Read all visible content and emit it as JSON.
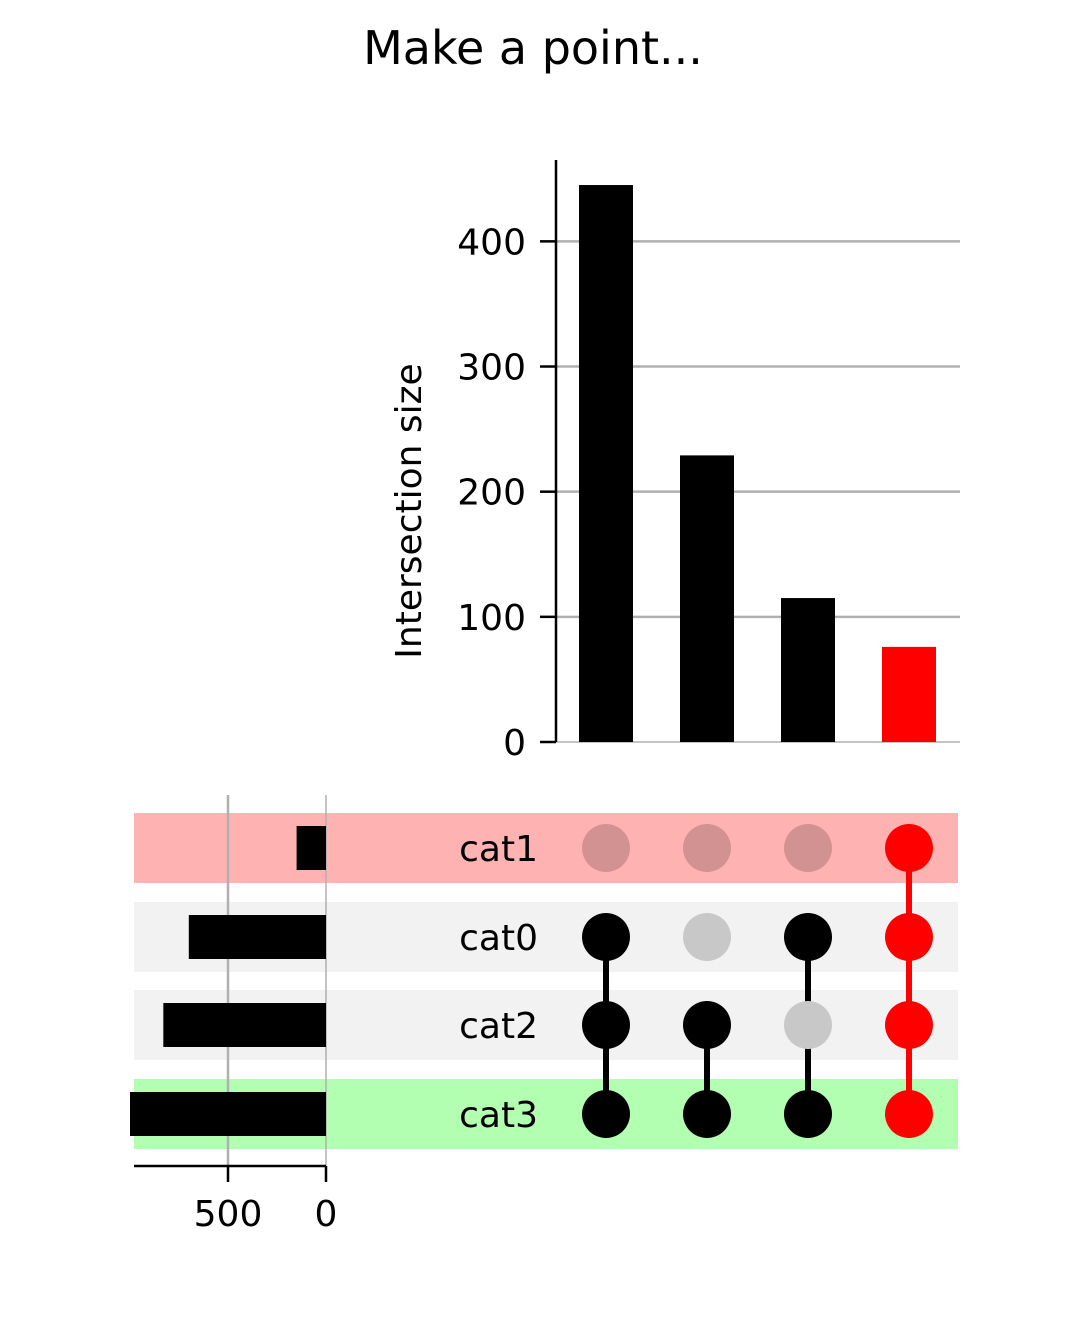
{
  "chart_data": {
    "type": "upset",
    "title": "Make a point...",
    "intersections": {
      "ylabel": "Intersection size",
      "yticks": [
        0,
        100,
        200,
        300,
        400
      ],
      "ylim": [
        0,
        465
      ],
      "grid": true,
      "values": [
        445,
        229,
        115,
        76
      ],
      "bar_colors": [
        "#000000",
        "#000000",
        "#000000",
        "#ff0000"
      ],
      "members": [
        [
          "cat0",
          "cat2",
          "cat3"
        ],
        [
          "cat2",
          "cat3"
        ],
        [
          "cat0",
          "cat3"
        ],
        [
          "cat1",
          "cat0",
          "cat2",
          "cat3"
        ]
      ],
      "dot_colors": [
        "#000000",
        "#000000",
        "#000000",
        "#ff0000"
      ]
    },
    "sets": {
      "names": [
        "cat1",
        "cat0",
        "cat2",
        "cat3"
      ],
      "totals": [
        150,
        700,
        830,
        1000
      ],
      "xticks": [
        500,
        0
      ],
      "row_colors": [
        "#ffb2b2",
        "#f2f2f2",
        "#f2f2f2",
        "#b2ffb2"
      ],
      "inactive_dot_colors": [
        "#d29292",
        "#c8c8c8",
        "#c8c8c8",
        "#c8c8c8"
      ]
    }
  }
}
